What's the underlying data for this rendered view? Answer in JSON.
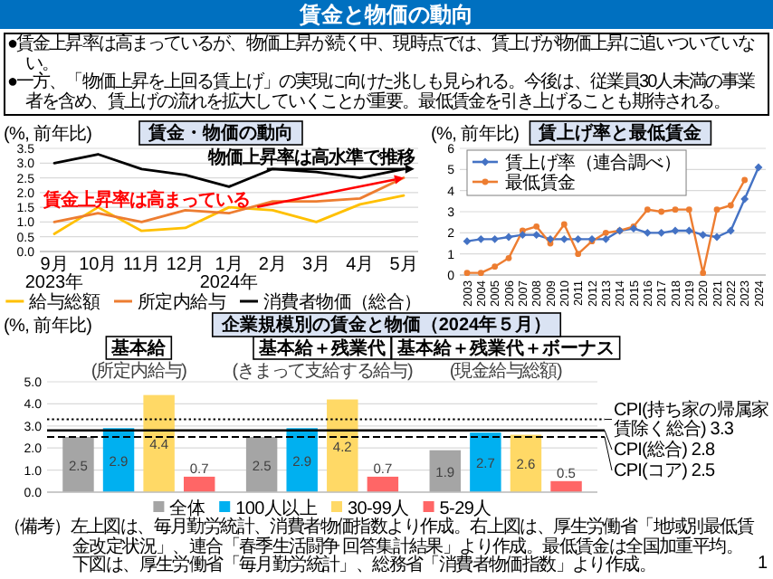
{
  "chart_data": [
    {
      "type": "other",
      "title": "賃金と物価の動向",
      "annotations": [
        "●賃金上昇率は高まっているが、物価上昇が続く中、現時点では、賃上げが物価上昇に追いついていない。",
        "●一方、「物価上昇を上回る賃上げ」の実現に向けた兆しも見られる。今後は、従業員30人未満の事業者を含め、賃上げの流れを拡大していくことが重要。最低賃金を引き上げることも期待される。",
        "（備考）左上図は、毎月勤労統計、消費者物価指数より作成。右上図は、厚生労働省「地域別最低賃金改定状況」、連合「春季生活闘争 回答集計結果」より作成。最低賃金は全国加重平均。下図は、厚生労働省「毎月勤労統計」、総務省「消費者物価指数」より作成。",
        "1"
      ]
    },
    {
      "type": "line",
      "title": "賃金・物価の動向",
      "ylabel": "(%, 前年比)",
      "categories": [
        "9月",
        "10月",
        "11月",
        "12月",
        "1月",
        "2月",
        "3月",
        "4月",
        "5月"
      ],
      "ylim": [
        0,
        3.5
      ],
      "yticks": [
        {
          "value": 0,
          "label": "0.0"
        },
        {
          "value": 0.5,
          "label": "0.5"
        },
        {
          "value": 1,
          "label": "1.0"
        },
        {
          "value": 1.5,
          "label": "1.5"
        },
        {
          "value": 2,
          "label": "2.0"
        },
        {
          "value": 2.5,
          "label": "2.5"
        },
        {
          "value": 3,
          "label": "3.0"
        },
        {
          "value": 3.5,
          "label": "3.5"
        }
      ],
      "grid": "y",
      "legend": "bottom",
      "series": [
        {
          "name": "給与総額",
          "color": "#ffc000",
          "values": [
            0.6,
            1.5,
            0.7,
            0.8,
            1.5,
            1.4,
            1.0,
            1.6,
            1.9
          ]
        },
        {
          "name": "所定内給与",
          "color": "#ed7d31",
          "values": [
            1.0,
            1.3,
            1.0,
            1.4,
            1.3,
            1.7,
            1.7,
            1.8,
            2.5
          ]
        },
        {
          "name": "消費者物価（総合）",
          "color": "#000000",
          "values": [
            3.0,
            3.3,
            2.8,
            2.6,
            2.2,
            2.8,
            2.7,
            2.5,
            2.8
          ]
        }
      ],
      "annotations": [
        "物価上昇率は高水準で推移",
        {
          "text": "賃金上昇率は高まっている",
          "x": "5月",
          "y": 2.5
        },
        "2023年",
        "2024年"
      ]
    },
    {
      "type": "line",
      "title": "賃上げ率と最低賃金",
      "ylabel": "(%, 前年比)",
      "categories": [
        "2003",
        "2004",
        "2005",
        "2006",
        "2007",
        "2008",
        "2009",
        "2010",
        "2011",
        "2012",
        "2013",
        "2014",
        "2015",
        "2016",
        "2017",
        "2018",
        "2019",
        "2020",
        "2021",
        "2022",
        "2023",
        "2024"
      ],
      "ylim": [
        0,
        6
      ],
      "yticks": [
        0,
        1,
        2,
        3,
        4,
        5,
        6
      ],
      "grid": "y",
      "legend": "top left",
      "marker": "circle",
      "series": [
        {
          "name": "賃上げ率（連合調べ）",
          "color": "#4472c4",
          "marker": "diamond",
          "values": [
            1.6,
            1.7,
            1.7,
            1.8,
            1.9,
            1.9,
            1.7,
            1.7,
            1.7,
            1.7,
            1.7,
            2.1,
            2.2,
            2.0,
            2.0,
            2.1,
            2.1,
            1.9,
            1.8,
            2.1,
            3.6,
            5.1
          ]
        },
        {
          "name": "最低賃金",
          "color": "#ed7d31",
          "values": [
            0.1,
            0.1,
            0.4,
            0.8,
            2.1,
            2.3,
            1.5,
            2.4,
            1.0,
            1.6,
            2.0,
            2.1,
            2.3,
            3.1,
            3.0,
            3.1,
            3.1,
            0.1,
            3.1,
            3.3,
            4.5,
            null
          ]
        }
      ]
    },
    {
      "type": "bar",
      "title": "企業規模別の賃金と物価（2024年５月）",
      "ylabel": "(%, 前年比)",
      "categories": [
        "基本給",
        "基本給＋残業代",
        "基本給＋残業代＋ボーナス"
      ],
      "annotations": [
        "(所定内給与)",
        "(きまって支給する給与)",
        "(現金給与総額)"
      ],
      "ylim": [
        0,
        5
      ],
      "yticks": [
        {
          "value": 0,
          "label": "0.0"
        },
        {
          "value": 1,
          "label": "1.0"
        },
        {
          "value": 2,
          "label": "2.0"
        },
        {
          "value": 3,
          "label": "3.0"
        },
        {
          "value": 4,
          "label": "4.0"
        },
        {
          "value": 5,
          "label": "5.0"
        }
      ],
      "grid": "y",
      "legend": "bottom",
      "data_labels": true,
      "series": [
        {
          "name": "全体",
          "color": "#a5a5a5",
          "values": [
            2.5,
            2.5,
            1.9
          ]
        },
        {
          "name": "100人以上",
          "color": "#00b0f0",
          "values": [
            2.9,
            2.9,
            2.7
          ]
        },
        {
          "name": "30-99人",
          "color": "#ffd966",
          "values": [
            4.4,
            4.2,
            2.6
          ]
        },
        {
          "name": "5-29人",
          "color": "#ff6666",
          "values": [
            0.7,
            0.7,
            0.5
          ]
        }
      ],
      "ref_lines": [
        {
          "axis": "y",
          "value": 3.3,
          "label": "CPI(持ち家の帰属家賃除く総合) 3.3",
          "line_style": "dotted",
          "color": "#000000"
        },
        {
          "axis": "y",
          "value": 2.8,
          "label": "CPI(総合) 2.8",
          "line_style": "solid",
          "color": "#000000"
        },
        {
          "axis": "y",
          "value": 2.5,
          "label": "CPI(コア) 2.5",
          "line_style": "dashed",
          "color": "#000000"
        }
      ]
    }
  ]
}
